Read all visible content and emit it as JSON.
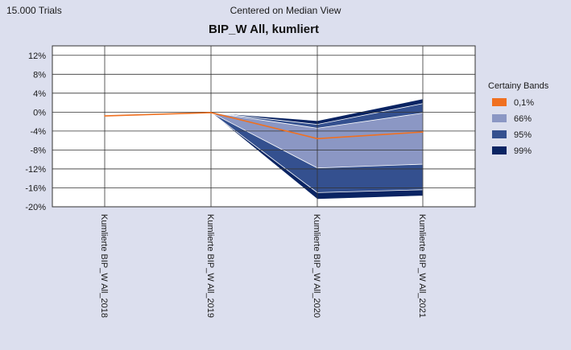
{
  "header": {
    "trials_label": "15.000 Trials",
    "view_label": "Centered on Median View"
  },
  "colors": {
    "background": "#dcdfee",
    "plot_bg": "#ffffff",
    "median": "#f07020",
    "band66": "#8b97c4",
    "band95": "#34508f",
    "band99": "#0a2463",
    "grid": "#333333"
  },
  "chart_data": {
    "type": "area",
    "title": "BIP_W All, kumliert",
    "categories": [
      "Kumlierte BIP_W All_2018",
      "Kumlierte BIP_W All_2019",
      "Kumlierte BIP_W All_2020",
      "Kumlierte BIP_W All_2021"
    ],
    "ylim": [
      -20,
      14
    ],
    "yticks": [
      12,
      8,
      4,
      0,
      -4,
      -8,
      -12,
      -16,
      -20
    ],
    "ytick_labels": [
      "12%",
      "8%",
      "4%",
      "0%",
      "-4%",
      "-8%",
      "-12%",
      "-16%",
      "-20%"
    ],
    "grid": true,
    "legend": {
      "title": "Certainy Bands",
      "position": "right",
      "items": [
        {
          "label": "0,1%",
          "color": "#f07020"
        },
        {
          "label": "66%",
          "color": "#8b97c4"
        },
        {
          "label": "95%",
          "color": "#34508f"
        },
        {
          "label": "99%",
          "color": "#0a2463"
        }
      ]
    },
    "median": [
      -0.8,
      -0.1,
      -5.6,
      -4.2
    ],
    "bands": {
      "band66": {
        "start_index": 1,
        "lower": [
          null,
          -0.1,
          -11.8,
          -11.0
        ],
        "upper": [
          null,
          -0.1,
          -3.4,
          -0.2
        ]
      },
      "band95": {
        "start_index": 1,
        "lower": [
          null,
          -0.1,
          -17.0,
          -16.4
        ],
        "upper": [
          null,
          -0.1,
          -2.6,
          1.8
        ]
      },
      "band99": {
        "start_index": 1,
        "lower": [
          null,
          -0.1,
          -18.4,
          -17.7
        ],
        "upper": [
          null,
          -0.1,
          -1.8,
          2.8
        ]
      }
    }
  }
}
